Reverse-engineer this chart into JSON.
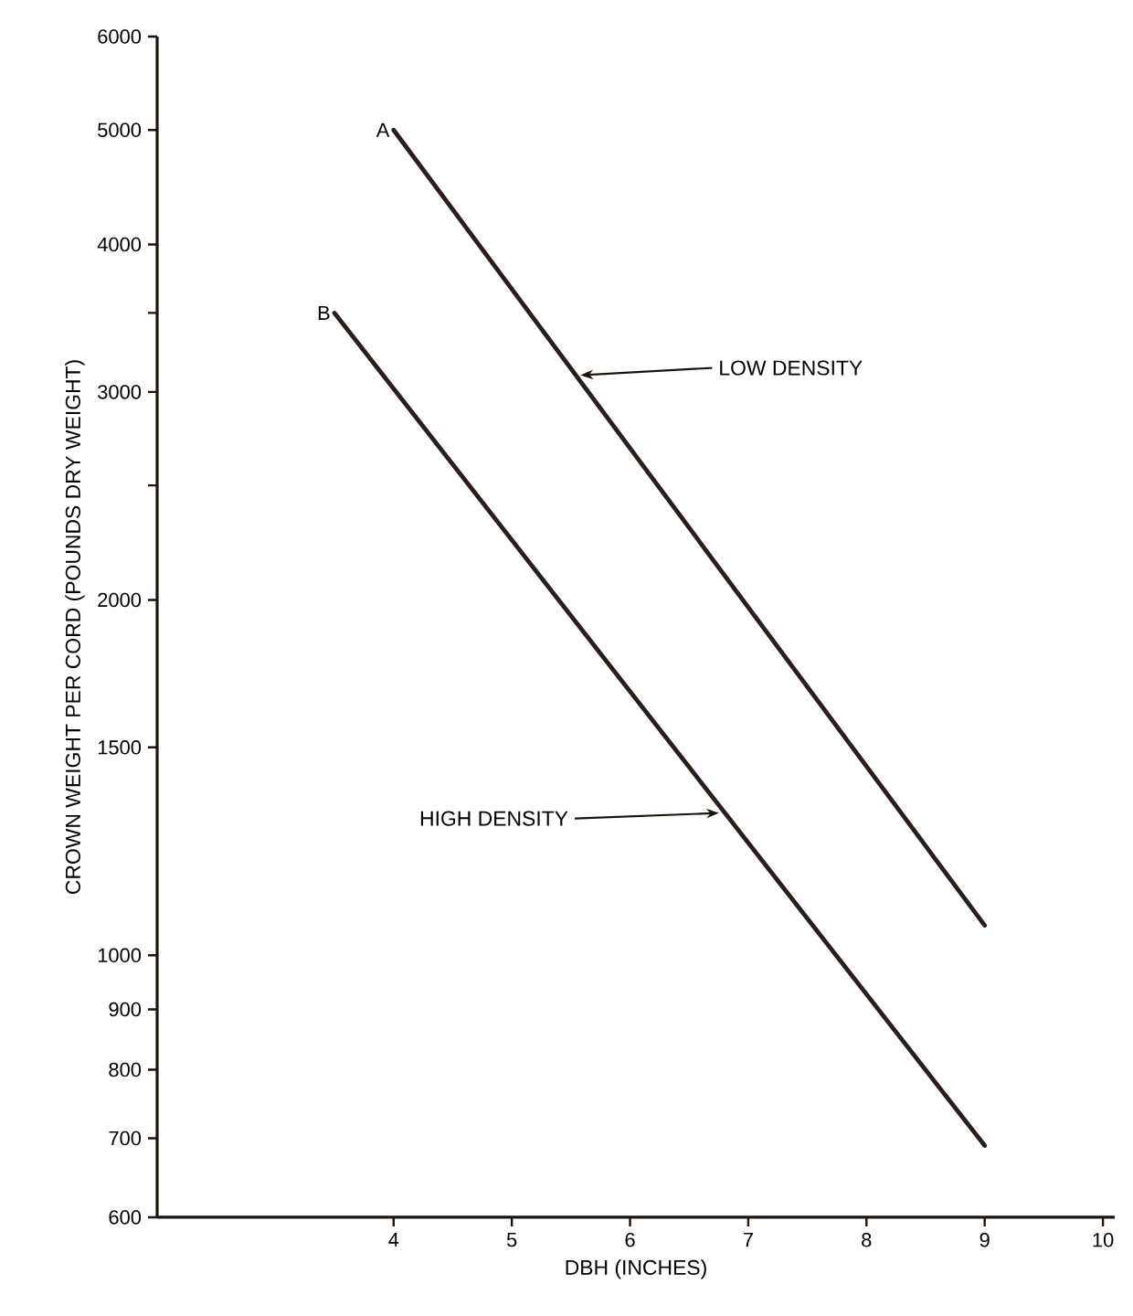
{
  "chart_data": {
    "type": "line",
    "xlabel": "DBH (INCHES)",
    "ylabel": "CROWN WEIGHT PER CORD (POUNDS DRY WEIGHT)",
    "log": "y",
    "xlim": [
      2,
      10.1
    ],
    "xticks": [
      4,
      5,
      6,
      7,
      8,
      9,
      10
    ],
    "ylim": [
      600,
      6000
    ],
    "yticks": [
      600,
      700,
      800,
      900,
      1000,
      1500,
      2000,
      {
        "value": 2500,
        "label": null
      },
      3000,
      {
        "value": 3500,
        "label": null
      },
      4000,
      5000,
      6000
    ],
    "series": [
      {
        "name": "A",
        "color": "#2b1d1a",
        "x": [
          4,
          9
        ],
        "values": [
          5000,
          1060
        ]
      },
      {
        "name": "B",
        "color": "#2b1d1a",
        "x": [
          3.5,
          9
        ],
        "values": [
          3500,
          690
        ]
      }
    ],
    "annotations": [
      {
        "text": "LOW DENSITY",
        "x": 5.55,
        "y": 3100
      },
      {
        "text": "HIGH DENSITY",
        "x": 6.8,
        "y": 1320
      }
    ]
  }
}
